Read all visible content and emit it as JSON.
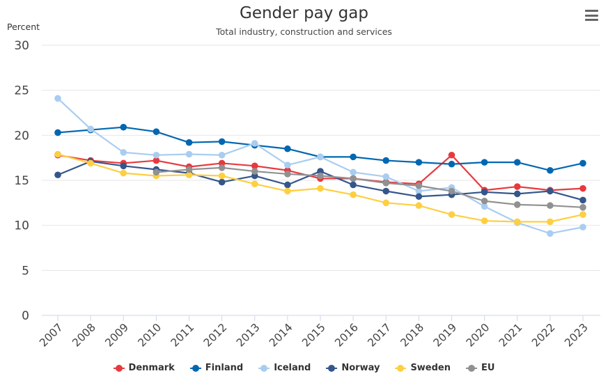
{
  "chart_data": {
    "type": "line",
    "title": "Gender pay gap",
    "subtitle": "Total industry, construction and services",
    "ylabel": "Percent",
    "xlabel": "",
    "ylim": [
      0,
      30
    ],
    "yticks": [
      0,
      5,
      10,
      15,
      20,
      25,
      30
    ],
    "grid": true,
    "legend_position": "bottom",
    "categories": [
      "2007",
      "2008",
      "2009",
      "2010",
      "2011",
      "2012",
      "2013",
      "2014",
      "2015",
      "2016",
      "2017",
      "2018",
      "2019",
      "2020",
      "2021",
      "2022",
      "2023"
    ],
    "series": [
      {
        "name": "Denmark",
        "color": "#e8393e",
        "values": [
          17.8,
          17.2,
          16.9,
          17.2,
          16.5,
          16.9,
          16.6,
          16.1,
          15.2,
          15.2,
          14.8,
          14.6,
          17.8,
          13.9,
          14.3,
          13.9,
          14.1
        ]
      },
      {
        "name": "Finland",
        "color": "#0067b1",
        "values": [
          20.3,
          20.6,
          20.9,
          20.4,
          19.2,
          19.3,
          18.9,
          18.5,
          17.6,
          17.6,
          17.2,
          17.0,
          16.8,
          17.0,
          17.0,
          16.1,
          16.9
        ]
      },
      {
        "name": "Iceland",
        "color": "#a9cdf0",
        "values": [
          24.1,
          20.7,
          18.1,
          17.8,
          17.9,
          17.8,
          19.1,
          16.7,
          17.6,
          15.9,
          15.4,
          13.8,
          14.2,
          12.1,
          10.3,
          9.1,
          9.8
        ]
      },
      {
        "name": "Norway",
        "color": "#34568b",
        "values": [
          15.6,
          17.1,
          16.6,
          16.2,
          15.8,
          14.8,
          15.5,
          14.5,
          16.0,
          14.5,
          13.8,
          13.2,
          13.4,
          13.7,
          13.5,
          13.8,
          12.8
        ]
      },
      {
        "name": "Sweden",
        "color": "#fdcf41",
        "values": [
          17.9,
          16.9,
          15.8,
          15.5,
          15.6,
          15.5,
          14.6,
          13.8,
          14.1,
          13.4,
          12.5,
          12.2,
          11.2,
          10.5,
          10.4,
          10.4,
          11.2
        ]
      },
      {
        "name": "EU",
        "color": "#919191",
        "values": [
          null,
          null,
          null,
          15.9,
          16.2,
          16.4,
          16.0,
          15.7,
          15.5,
          15.2,
          14.7,
          14.4,
          13.8,
          12.7,
          12.3,
          12.2,
          12.0
        ]
      }
    ]
  },
  "menu_icon": "hamburger-menu-icon"
}
